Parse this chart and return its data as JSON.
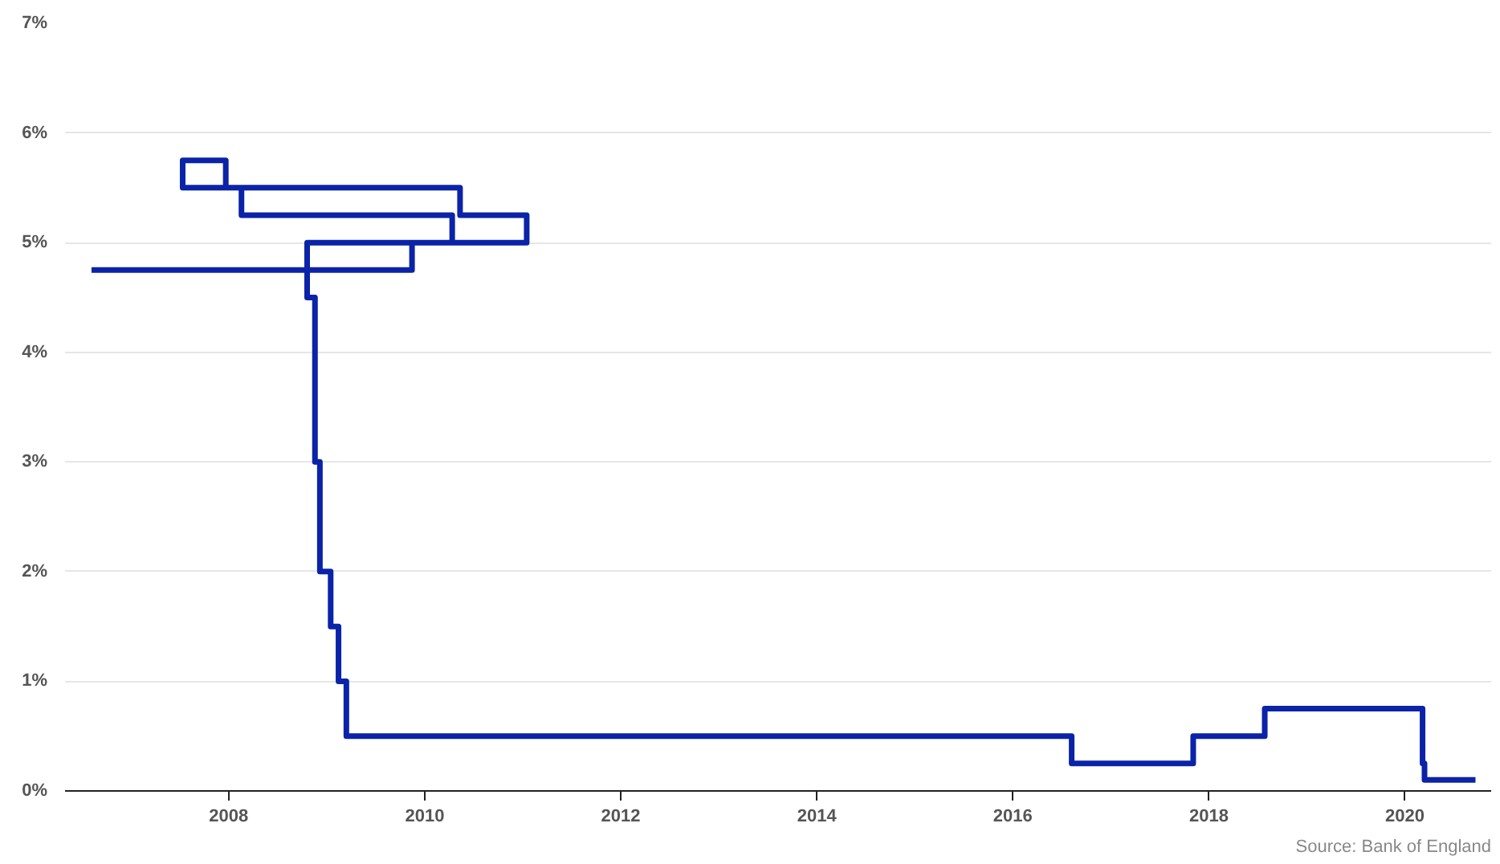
{
  "chart_data": {
    "type": "step",
    "x": [
      2006.6,
      2009.87,
      2011.04,
      2010.36,
      2007.53,
      2007.97,
      2008.13,
      2010.28,
      2008.8,
      2008.88,
      2008.93,
      2009.04,
      2009.12,
      2009.2,
      2016.6,
      2017.84,
      2018.57,
      2020.18,
      2020.2,
      2020.72
    ],
    "series": [
      {
        "color": "#0a23a8",
        "values": [
          4.75,
          5.0,
          5.25,
          5.5,
          5.75,
          5.5,
          5.25,
          5.0,
          4.5,
          3.0,
          2.0,
          1.5,
          1.0,
          0.5,
          0.25,
          0.5,
          0.75,
          0.25,
          0.1,
          0.1
        ]
      }
    ],
    "xlim": [
      2006.33,
      2020.88
    ],
    "xticks": [
      2008,
      2010,
      2012,
      2014,
      2016,
      2018,
      2020
    ],
    "ylim": [
      0,
      7
    ],
    "yticks": [
      {
        "value": 0,
        "label": "0%"
      },
      {
        "value": 1,
        "label": "1%"
      },
      {
        "value": 2,
        "label": "2%"
      },
      {
        "value": 3,
        "label": "3%"
      },
      {
        "value": 4,
        "label": "4%"
      },
      {
        "value": 5,
        "label": "5%"
      },
      {
        "value": 6,
        "label": "6%"
      },
      {
        "value": 7,
        "label": "7%"
      }
    ],
    "grid": "y",
    "annotations": [
      "Source: Bank of England"
    ]
  }
}
